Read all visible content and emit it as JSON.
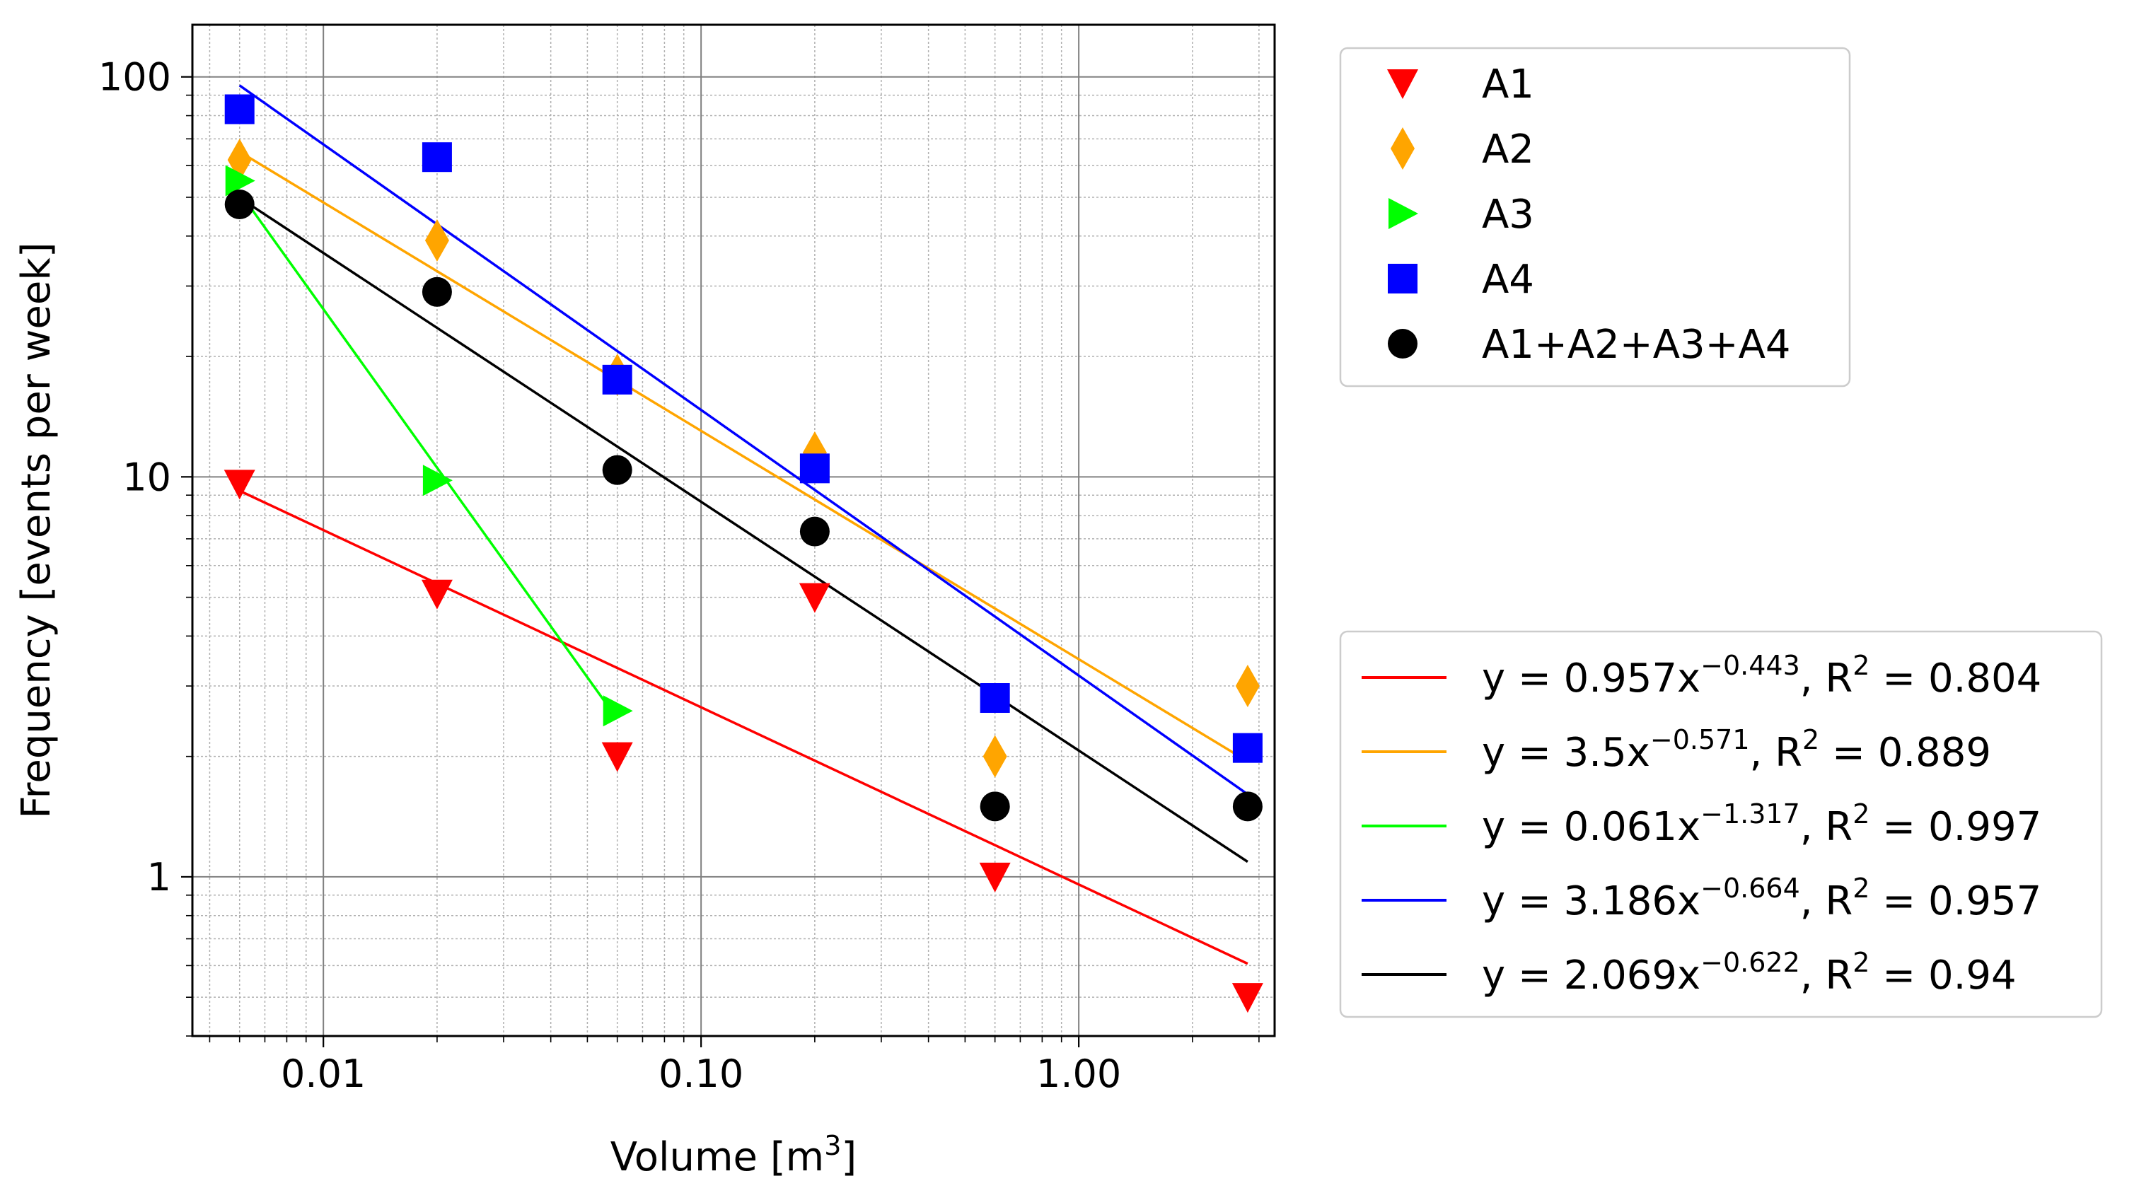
{
  "chart_data": {
    "type": "scatter",
    "xlabel": "Volume [m",
    "xlabel_sup": "3",
    "xlabel_tail": "]",
    "ylabel": "Frequency [events per week]",
    "xscale": "log",
    "yscale": "log",
    "xlim": [
      0.0045,
      3.3
    ],
    "ylim": [
      0.4,
      135
    ],
    "grid": true,
    "x_ticks": [
      {
        "value": 0.01,
        "label": "0.01"
      },
      {
        "value": 0.1,
        "label": "0.10"
      },
      {
        "value": 1.0,
        "label": "1.00"
      }
    ],
    "y_ticks": [
      {
        "value": 1,
        "label": "1"
      },
      {
        "value": 10,
        "label": "10"
      },
      {
        "value": 100,
        "label": "100"
      }
    ],
    "series": [
      {
        "name": "A1",
        "marker": "triangle-down",
        "color": "#ff0000",
        "x": [
          0.006,
          0.02,
          0.06,
          0.2,
          0.6,
          2.8
        ],
        "y": [
          9.6,
          5.1,
          2.0,
          5.0,
          1.0,
          0.5
        ]
      },
      {
        "name": "A2",
        "marker": "diamond",
        "color": "#ffa500",
        "x": [
          0.006,
          0.02,
          0.06,
          0.2,
          0.6,
          2.8
        ],
        "y": [
          62,
          39,
          18,
          11.5,
          2.0,
          3.0
        ]
      },
      {
        "name": "A3",
        "marker": "triangle-right",
        "color": "#00ff00",
        "x": [
          0.006,
          0.02,
          0.06
        ],
        "y": [
          55,
          9.8,
          2.6
        ]
      },
      {
        "name": "A4",
        "marker": "square",
        "color": "#0000ff",
        "x": [
          0.006,
          0.02,
          0.06,
          0.2,
          0.6,
          2.8
        ],
        "y": [
          83,
          63,
          17.5,
          10.5,
          2.8,
          2.1
        ]
      },
      {
        "name": "A1+A2+A3+A4",
        "marker": "circle",
        "color": "#000000",
        "x": [
          0.006,
          0.02,
          0.06,
          0.2,
          0.6,
          2.8
        ],
        "y": [
          48,
          29,
          10.4,
          7.3,
          1.5,
          1.5
        ]
      }
    ],
    "fits": [
      {
        "color": "#ff0000",
        "a": 0.957,
        "b": -0.443,
        "x_range": [
          0.006,
          2.8
        ],
        "eq_prefix": "y = 0.957x",
        "exponent": "−0.443",
        "r2_prefix": ", R",
        "r2_sup": "2",
        "r2_value": " = 0.804"
      },
      {
        "color": "#ffa500",
        "a": 3.5,
        "b": -0.571,
        "x_range": [
          0.006,
          2.8
        ],
        "eq_prefix": "y = 3.5x",
        "exponent": "−0.571",
        "r2_prefix": ", R",
        "r2_sup": "2",
        "r2_value": " = 0.889"
      },
      {
        "color": "#00ff00",
        "a": 0.061,
        "b": -1.317,
        "x_range": [
          0.006,
          0.06
        ],
        "eq_prefix": "y = 0.061x",
        "exponent": "−1.317",
        "r2_prefix": ", R",
        "r2_sup": "2",
        "r2_value": " = 0.997"
      },
      {
        "color": "#0000ff",
        "a": 3.186,
        "b": -0.664,
        "x_range": [
          0.006,
          2.8
        ],
        "eq_prefix": "y = 3.186x",
        "exponent": "−0.664",
        "r2_prefix": ", R",
        "r2_sup": "2",
        "r2_value": " = 0.957"
      },
      {
        "color": "#000000",
        "a": 2.069,
        "b": -0.622,
        "x_range": [
          0.006,
          2.8
        ],
        "eq_prefix": "y = 2.069x",
        "exponent": "−0.622",
        "r2_prefix": ", R",
        "r2_sup": "2",
        "r2_value": " = 0.94"
      }
    ],
    "legend_markers_position": "upper right, outside plot",
    "legend_fits_position": "lower right, outside plot"
  }
}
